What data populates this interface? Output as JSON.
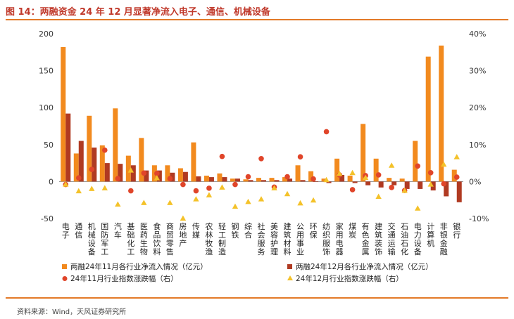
{
  "title": "图 14：两融资金 24 年 12 月显著净流入电子、通信、机械设备",
  "source": "资料来源：Wind，天风证券研究所",
  "colors": {
    "nov_bar": "#f28a1e",
    "dec_bar": "#b03a22",
    "nov_pct": "#e0452a",
    "dec_pct": "#f4c22a",
    "accent": "#c0392b"
  },
  "chart_data": {
    "type": "bar",
    "categories": [
      "电子",
      "通信",
      "机械设备",
      "国防军工",
      "汽车",
      "基础化工",
      "医药生物",
      "食品饮料",
      "商贸零售",
      "房地产",
      "传媒",
      "农林牧渔",
      "轻工制造",
      "钢铁",
      "综合",
      "社会服务",
      "美容护理",
      "建筑材料",
      "公用事业",
      "环保",
      "纺织服饰",
      "家用电器",
      "煤炭",
      "有色金属",
      "建筑装饰",
      "交通运输",
      "石油石化",
      "电力设备",
      "计算机",
      "非银金融",
      "银行"
    ],
    "left_axis": {
      "ylim": [
        -50,
        200
      ],
      "ticks": [
        "-50",
        "0",
        "50",
        "100",
        "150",
        "200"
      ]
    },
    "right_axis": {
      "ylim": [
        -10,
        40
      ],
      "ticks": [
        "-10%",
        "0%",
        "10%",
        "20%",
        "30%",
        "40%"
      ]
    },
    "series": [
      {
        "name": "两融24年11月各行业净流入情况（亿元）",
        "type": "bar",
        "axis": "left",
        "values": [
          182,
          38,
          89,
          49,
          99,
          35,
          59,
          22,
          22,
          18,
          53,
          8,
          11,
          4,
          3,
          5,
          5,
          6,
          22,
          14,
          4,
          31,
          8,
          78,
          31,
          5,
          4,
          55,
          169,
          184,
          16
        ]
      },
      {
        "name": "两融24年12月各行业净流入情况（亿元）",
        "type": "bar",
        "axis": "left",
        "values": [
          92,
          55,
          46,
          25,
          24,
          22,
          15,
          15,
          12,
          13,
          7,
          6,
          6,
          4,
          2,
          2,
          2,
          4,
          2,
          0,
          -2,
          9,
          -2,
          -5,
          -8,
          -5,
          -10,
          -10,
          -12,
          -20,
          -28
        ]
      },
      {
        "name": "24年11月行业指数涨跌幅（右）",
        "type": "scatter",
        "axis": "right",
        "values": [
          -0.8,
          1.0,
          3.3,
          8.5,
          0.8,
          -2.5,
          2.3,
          2.2,
          0.8,
          -0.8,
          -2.5,
          -1.8,
          6.8,
          -0.8,
          1.3,
          6.2,
          -1.5,
          1.3,
          6.7,
          0.7,
          13.5,
          1.8,
          -2.2,
          1.6,
          1.8,
          -1.6,
          -2.4,
          4.2,
          2.4,
          -0.6,
          1.2
        ]
      },
      {
        "name": "24年12月行业指数涨跌幅（右）",
        "type": "scatter",
        "axis": "right",
        "values": [
          -0.8,
          -2.6,
          -2.0,
          -1.8,
          -6.2,
          3.0,
          -5.8,
          0.9,
          -5.8,
          -10.0,
          -4.8,
          -3.7,
          -1.6,
          -6.8,
          -5.5,
          -4.8,
          -1.8,
          -3.4,
          -5.9,
          -5.1,
          0.4,
          2.1,
          2.3,
          1.0,
          -4.1,
          4.3,
          -2.5,
          -7.3,
          -0.8,
          4.6,
          6.6
        ]
      }
    ]
  }
}
